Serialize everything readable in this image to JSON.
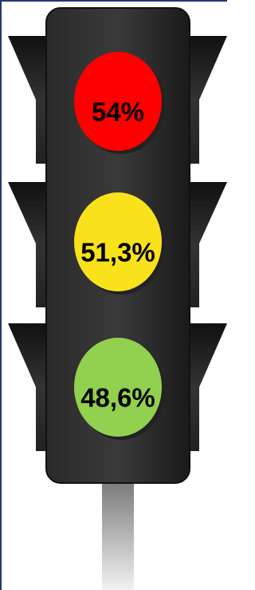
{
  "lights": [
    {
      "label": "54%",
      "color": "#ff0000"
    },
    {
      "label": "51,3%",
      "color": "#f9e11c"
    },
    {
      "label": "48,6%",
      "color": "#92d050"
    }
  ]
}
